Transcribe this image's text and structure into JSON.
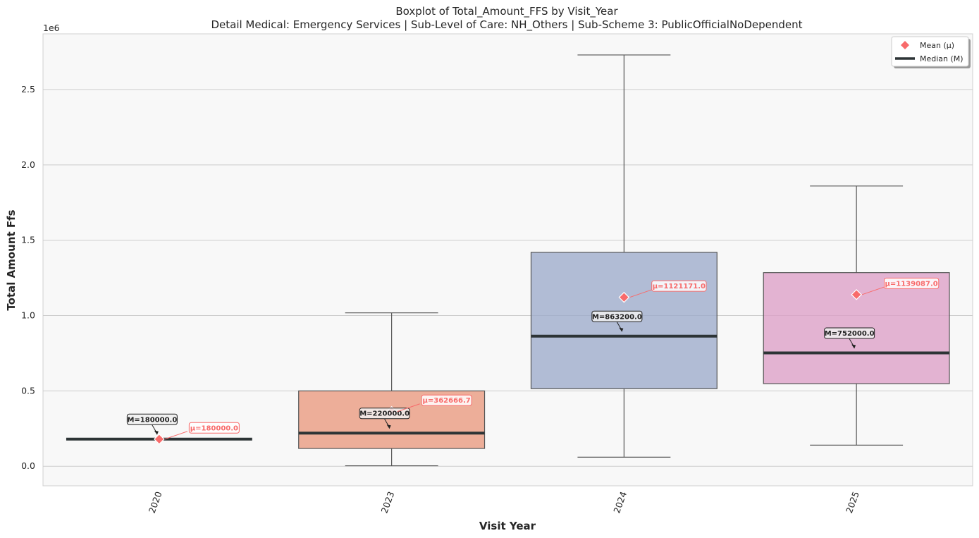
{
  "chart_data": {
    "type": "boxplot",
    "title": "Boxplot of Total_Amount_FFS by Visit_Year",
    "subtitle": "Detail Medical: Emergency Services | Sub-Level of Care: NH_Others | Sub-Scheme 3: PublicOfficialNoDependent",
    "xlabel": "Visit Year",
    "ylabel": "Total Amount Ffs",
    "y_scale_label": "1e6",
    "ylim": [
      -130000,
      2870000
    ],
    "yticks": [
      0,
      500000,
      1000000,
      1500000,
      2000000,
      2500000
    ],
    "ytick_labels": [
      "0.0",
      "0.5",
      "1.0",
      "1.5",
      "2.0",
      "2.5"
    ],
    "grid": true,
    "legend_position": "top-right",
    "legend": [
      {
        "label": "Mean (μ)",
        "marker": "diamond",
        "color": "#f86b6b"
      },
      {
        "label": "Median (M)",
        "marker": "line",
        "color": "#2d3436"
      }
    ],
    "categories": [
      "2020",
      "2023",
      "2024",
      "2025"
    ],
    "boxes": [
      {
        "category": "2020",
        "whisker_low": 180000,
        "q1": 180000,
        "median": 180000,
        "q3": 180000,
        "whisker_high": 180000,
        "mean": 180000,
        "color": "#f4a582",
        "median_label": "M=180000.0",
        "mean_label": "μ=180000.0"
      },
      {
        "category": "2023",
        "whisker_low": 3000,
        "q1": 118000,
        "median": 220000,
        "q3": 500000,
        "whisker_high": 1018000,
        "mean": 362666.7,
        "color": "#e9967a",
        "median_label": "M=220000.0",
        "mean_label": "μ=362666.7"
      },
      {
        "category": "2024",
        "whisker_low": 60000,
        "q1": 515000,
        "median": 863200,
        "q3": 1420000,
        "whisker_high": 2730000,
        "mean": 1121171.0,
        "color": "#9aa8c9",
        "median_label": "M=863200.0",
        "mean_label": "μ=1121171.0"
      },
      {
        "category": "2025",
        "whisker_low": 140000,
        "q1": 548000,
        "median": 752000,
        "q3": 1285000,
        "whisker_high": 1860000,
        "mean": 1139087.0,
        "color": "#dc9cc6",
        "median_label": "M=752000.0",
        "mean_label": "μ=1139087.0"
      }
    ]
  },
  "colors": {
    "plot_bg": "#f8f8f8",
    "grid": "#cccccc",
    "median": "#2d3436",
    "mean": "#f86b6b",
    "whisker": "#555555"
  }
}
